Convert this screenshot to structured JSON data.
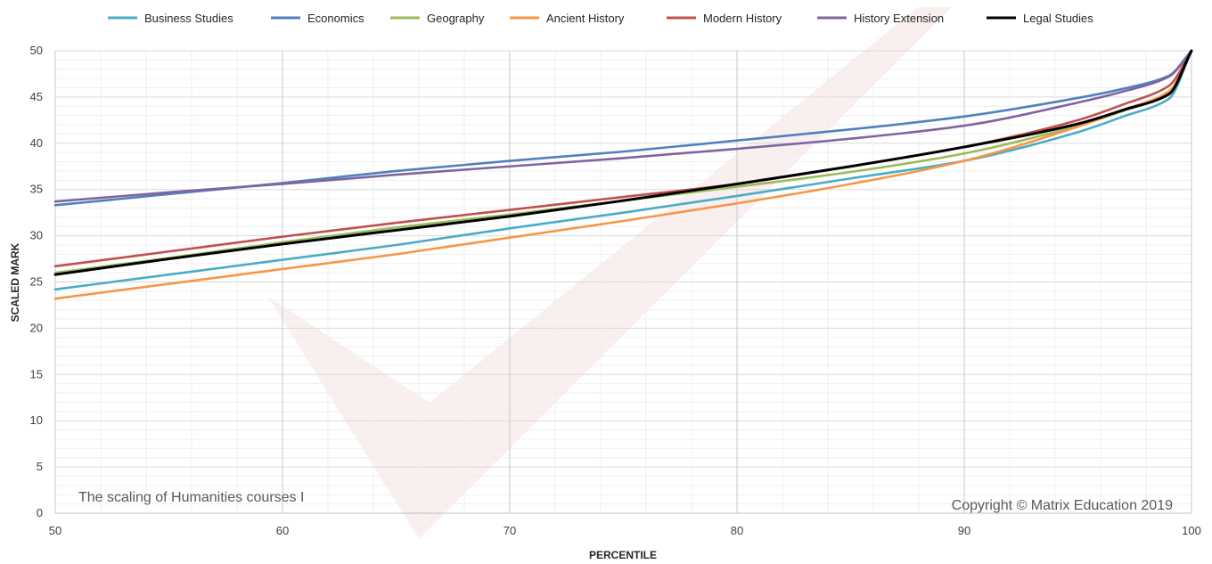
{
  "chart_data": {
    "type": "line",
    "title": "",
    "annotation_left": "The scaling of Humanities courses I",
    "annotation_right": "Copyright © Matrix Education 2019",
    "xlabel": "PERCENTILE",
    "ylabel": "SCALED MARK",
    "xlim": [
      50,
      100
    ],
    "ylim": [
      0,
      50
    ],
    "x_ticks": [
      50,
      60,
      70,
      80,
      90,
      100
    ],
    "y_ticks": [
      0,
      5,
      10,
      15,
      20,
      25,
      30,
      35,
      40,
      45,
      50
    ],
    "grid": true,
    "legend_position": "top",
    "x": [
      50,
      55,
      60,
      65,
      70,
      75,
      80,
      85,
      90,
      95,
      97,
      99,
      100
    ],
    "series": [
      {
        "name": "Business Studies",
        "color": "#4BACC6",
        "values": [
          24.2,
          25.8,
          27.4,
          29.0,
          30.8,
          32.5,
          34.3,
          36.2,
          38.1,
          41.2,
          42.9,
          44.8,
          50
        ]
      },
      {
        "name": "Economics",
        "color": "#4F81BD",
        "values": [
          33.3,
          34.5,
          35.7,
          37.0,
          38.1,
          39.1,
          40.3,
          41.5,
          42.9,
          44.9,
          45.9,
          47.3,
          50
        ]
      },
      {
        "name": "Geography",
        "color": "#9BBB59",
        "values": [
          26.0,
          27.6,
          29.3,
          30.9,
          32.3,
          33.8,
          35.3,
          36.9,
          38.9,
          41.9,
          43.5,
          45.4,
          50
        ]
      },
      {
        "name": "Ancient History",
        "color": "#F79646",
        "values": [
          23.2,
          24.8,
          26.4,
          28.0,
          29.8,
          31.6,
          33.5,
          35.6,
          38.1,
          41.8,
          43.6,
          45.6,
          50
        ]
      },
      {
        "name": "Modern History",
        "color": "#C0504D",
        "values": [
          26.7,
          28.3,
          29.9,
          31.4,
          32.8,
          34.2,
          35.6,
          37.5,
          39.6,
          42.5,
          44.2,
          46.2,
          50
        ]
      },
      {
        "name": "History Extension",
        "color": "#8064A2",
        "values": [
          33.7,
          34.7,
          35.6,
          36.6,
          37.5,
          38.4,
          39.4,
          40.5,
          41.9,
          44.4,
          45.6,
          47.2,
          50
        ]
      },
      {
        "name": "Legal Studies",
        "color": "#000000",
        "values": [
          25.8,
          27.5,
          29.1,
          30.6,
          32.1,
          33.8,
          35.6,
          37.5,
          39.6,
          42.1,
          43.6,
          45.3,
          50
        ]
      }
    ]
  }
}
